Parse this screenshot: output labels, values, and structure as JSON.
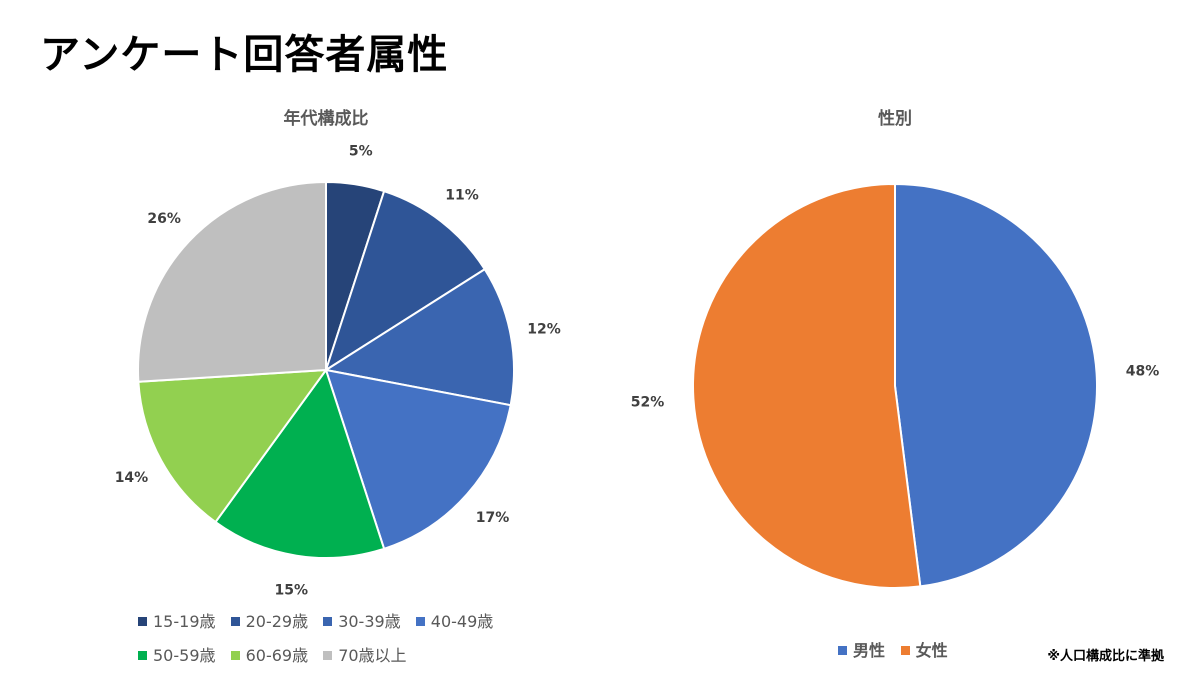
{
  "page": {
    "title": "アンケート回答者属性",
    "footnote": "※人口構成比に準拠"
  },
  "chart_data": [
    {
      "type": "pie",
      "title": "年代構成比",
      "categories": [
        "15-19歳",
        "20-29歳",
        "30-39歳",
        "40-49歳",
        "50-59歳",
        "60-69歳",
        "70歳以上"
      ],
      "values": [
        5,
        11,
        12,
        17,
        15,
        14,
        26
      ],
      "labels": [
        "5%",
        "11%",
        "12%",
        "17%",
        "15%",
        "14%",
        "26%"
      ],
      "colors": [
        "#264478",
        "#2F5597",
        "#3A65B0",
        "#4472C4",
        "#00B050",
        "#92D050",
        "#BFBFBF"
      ],
      "legend": "bottom"
    },
    {
      "type": "pie",
      "title": "性別",
      "categories": [
        "男性",
        "女性"
      ],
      "values": [
        48,
        52
      ],
      "labels": [
        "48%",
        "52%"
      ],
      "colors": [
        "#4472C4",
        "#ED7D31"
      ],
      "legend": "bottom"
    }
  ]
}
